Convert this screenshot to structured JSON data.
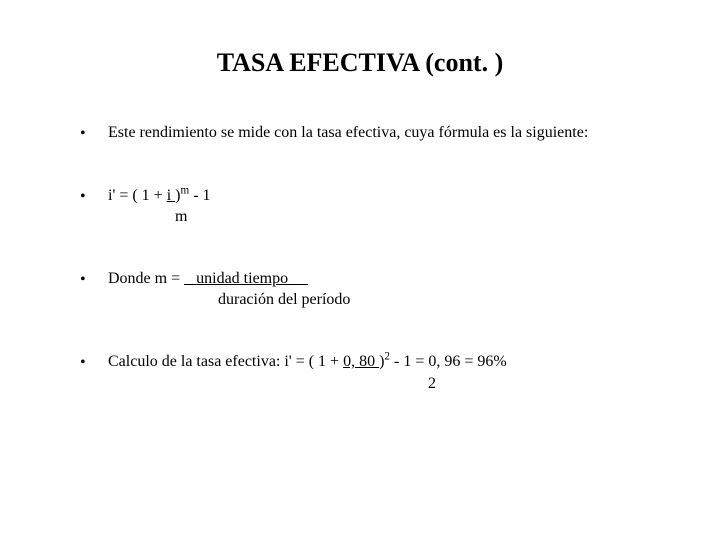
{
  "title": "TASA EFECTIVA (cont. )",
  "bullets": {
    "b1": {
      "text": "Este rendimiento se mide con la tasa efectiva, cuya fórmula es la siguiente:"
    },
    "b2": {
      "prefix": "i' = ( 1 + ",
      "frac_top": " i ",
      "after_frac": ")",
      "exp": "m",
      "suffix": "  - 1",
      "line2": "m"
    },
    "b3": {
      "prefix": "Donde m = ",
      "underline_spaces_left": "   ",
      "frac_top": "unidad tiempo",
      "underline_spaces_right": "     ",
      "line2": "duración del período"
    },
    "b4": {
      "prefix": "Calculo de la tasa efectiva: i' = ( 1 + ",
      "frac_top": " 0, 80 ",
      "after_frac": ")",
      "exp": "2",
      "suffix": "  - 1 = 0, 96 = 96%",
      "line2": "2"
    }
  },
  "style": {
    "background_color": "#ffffff",
    "text_color": "#000000",
    "title_fontsize": 26,
    "body_fontsize": 16,
    "font_family": "Times New Roman"
  }
}
